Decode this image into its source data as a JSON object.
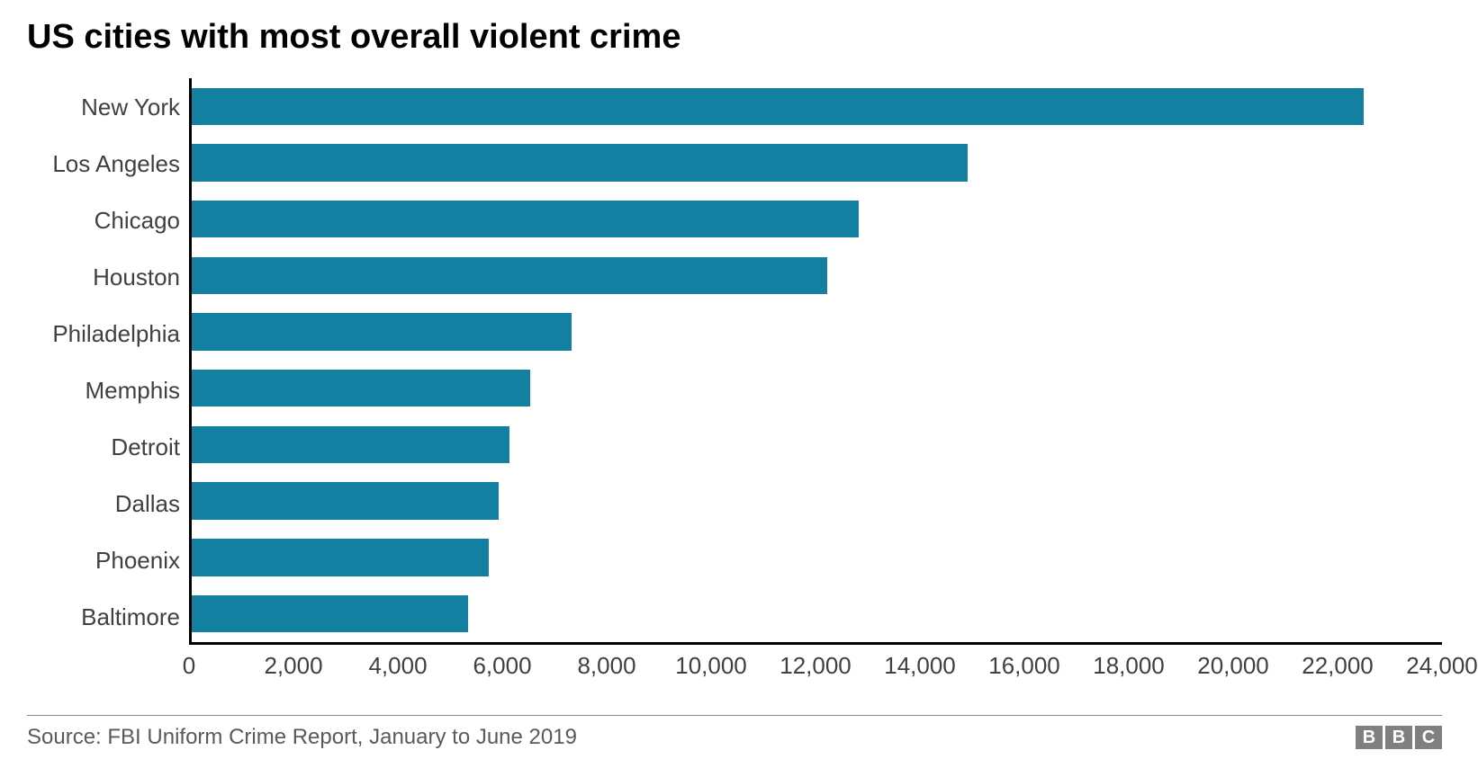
{
  "chart": {
    "type": "bar-horizontal",
    "title": "US cities with most overall violent crime",
    "title_fontsize": 38,
    "title_color": "#000000",
    "background_color": "#ffffff",
    "bar_color": "#1380a1",
    "axis_color": "#000000",
    "label_color": "#404040",
    "label_fontsize": 26,
    "bar_height_ratio": 0.66,
    "categories": [
      "New York",
      "Los Angeles",
      "Chicago",
      "Houston",
      "Philadelphia",
      "Memphis",
      "Detroit",
      "Dallas",
      "Phoenix",
      "Baltimore"
    ],
    "values": [
      22500,
      14900,
      12800,
      12200,
      7300,
      6500,
      6100,
      5900,
      5700,
      5300
    ],
    "xlim": [
      0,
      24000
    ],
    "xtick_step": 2000,
    "xtick_labels": [
      "0",
      "2,000",
      "4,000",
      "6,000",
      "8,000",
      "10,000",
      "12,000",
      "14,000",
      "16,000",
      "18,000",
      "20,000",
      "22,000",
      "24,000"
    ]
  },
  "footer": {
    "source": "Source: FBI Uniform Crime Report, January to June 2019",
    "source_color": "#5a5a5a",
    "source_fontsize": 24,
    "divider_color": "#888888",
    "logo_letters": [
      "B",
      "B",
      "C"
    ],
    "logo_bg": "#808080",
    "logo_fg": "#ffffff"
  }
}
